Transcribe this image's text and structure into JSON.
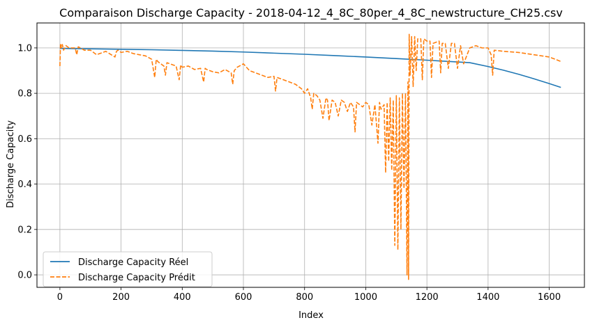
{
  "chart_data": {
    "type": "line",
    "title": "Comparaison Discharge Capacity - 2018-04-12_4_8C_80per_4_8C_newstructure_CH25.csv",
    "xlabel": "Index",
    "ylabel": "Discharge Capacity",
    "xlim": [
      -75,
      1715
    ],
    "ylim": [
      -0.055,
      1.11
    ],
    "xticks": [
      0,
      200,
      400,
      600,
      800,
      1000,
      1200,
      1400,
      1600
    ],
    "yticks": [
      0.0,
      0.2,
      0.4,
      0.6,
      0.8,
      1.0
    ],
    "xtick_labels": [
      "0",
      "200",
      "400",
      "600",
      "800",
      "1000",
      "1200",
      "1400",
      "1600"
    ],
    "ytick_labels": [
      "0.0",
      "0.2",
      "0.4",
      "0.6",
      "0.8",
      "1.0"
    ],
    "grid": true,
    "legend_position": "lower-left",
    "series": [
      {
        "name": "Discharge Capacity Réel",
        "color": "#1f77b4",
        "style": "solid",
        "x": [
          0,
          100,
          200,
          300,
          400,
          500,
          600,
          700,
          800,
          900,
          1000,
          1100,
          1200,
          1300,
          1340,
          1400,
          1450,
          1500,
          1550,
          1600,
          1638
        ],
        "y": [
          0.998,
          0.996,
          0.994,
          0.992,
          0.989,
          0.986,
          0.982,
          0.977,
          0.972,
          0.966,
          0.96,
          0.953,
          0.946,
          0.938,
          0.935,
          0.918,
          0.902,
          0.884,
          0.864,
          0.843,
          0.826
        ]
      },
      {
        "name": "Discharge Capacity Prédit",
        "color": "#ff7f0e",
        "style": "dashed",
        "x": [
          0,
          2,
          5,
          8,
          12,
          20,
          30,
          50,
          55,
          60,
          80,
          100,
          120,
          150,
          180,
          185,
          190,
          200,
          220,
          240,
          260,
          280,
          300,
          310,
          315,
          320,
          340,
          345,
          350,
          380,
          390,
          395,
          400,
          420,
          440,
          460,
          470,
          475,
          480,
          500,
          520,
          540,
          560,
          565,
          570,
          580,
          600,
          620,
          640,
          660,
          680,
          700,
          705,
          710,
          730,
          750,
          770,
          790,
          800,
          810,
          820,
          825,
          830,
          840,
          850,
          860,
          870,
          875,
          880,
          890,
          900,
          910,
          920,
          930,
          940,
          950,
          960,
          965,
          970,
          980,
          990,
          1000,
          1010,
          1020,
          1030,
          1040,
          1045,
          1050,
          1060,
          1065,
          1070,
          1075,
          1080,
          1085,
          1090,
          1095,
          1100,
          1105,
          1110,
          1115,
          1120,
          1125,
          1130,
          1135,
          1138,
          1140,
          1142,
          1145,
          1150,
          1155,
          1160,
          1165,
          1170,
          1180,
          1185,
          1190,
          1200,
          1210,
          1215,
          1220,
          1240,
          1245,
          1250,
          1260,
          1270,
          1280,
          1290,
          1300,
          1310,
          1320,
          1340,
          1360,
          1380,
          1400,
          1410,
          1415,
          1420,
          1450,
          1500,
          1550,
          1600,
          1620,
          1638
        ],
        "y": [
          0.92,
          1.02,
          1.0,
          1.015,
          0.99,
          1.01,
          1.0,
          1.0,
          0.97,
          1.005,
          0.99,
          0.99,
          0.97,
          0.985,
          0.96,
          0.985,
          0.99,
          0.98,
          0.985,
          0.975,
          0.97,
          0.965,
          0.95,
          0.87,
          0.95,
          0.94,
          0.92,
          0.88,
          0.935,
          0.92,
          0.86,
          0.925,
          0.915,
          0.92,
          0.905,
          0.91,
          0.85,
          0.91,
          0.905,
          0.895,
          0.89,
          0.905,
          0.89,
          0.84,
          0.9,
          0.915,
          0.93,
          0.9,
          0.89,
          0.88,
          0.87,
          0.875,
          0.81,
          0.87,
          0.86,
          0.85,
          0.84,
          0.82,
          0.8,
          0.82,
          0.78,
          0.73,
          0.8,
          0.79,
          0.77,
          0.69,
          0.78,
          0.77,
          0.68,
          0.77,
          0.76,
          0.7,
          0.77,
          0.76,
          0.72,
          0.76,
          0.74,
          0.63,
          0.76,
          0.75,
          0.74,
          0.76,
          0.75,
          0.66,
          0.75,
          0.58,
          0.76,
          0.73,
          0.75,
          0.45,
          0.76,
          0.5,
          0.78,
          0.46,
          0.77,
          0.13,
          0.79,
          0.11,
          0.78,
          0.2,
          0.8,
          0.38,
          0.8,
          0.0,
          0.85,
          -0.02,
          1.06,
          0.88,
          1.05,
          0.83,
          1.05,
          0.9,
          1.04,
          1.04,
          0.86,
          1.04,
          1.03,
          1.03,
          0.87,
          1.02,
          1.03,
          0.89,
          1.02,
          1.02,
          0.91,
          1.02,
          1.02,
          0.91,
          1.01,
          0.93,
          1.0,
          1.01,
          1.0,
          1.0,
          0.97,
          0.88,
          0.99,
          0.985,
          0.98,
          0.97,
          0.96,
          0.95,
          0.94
        ]
      }
    ]
  }
}
